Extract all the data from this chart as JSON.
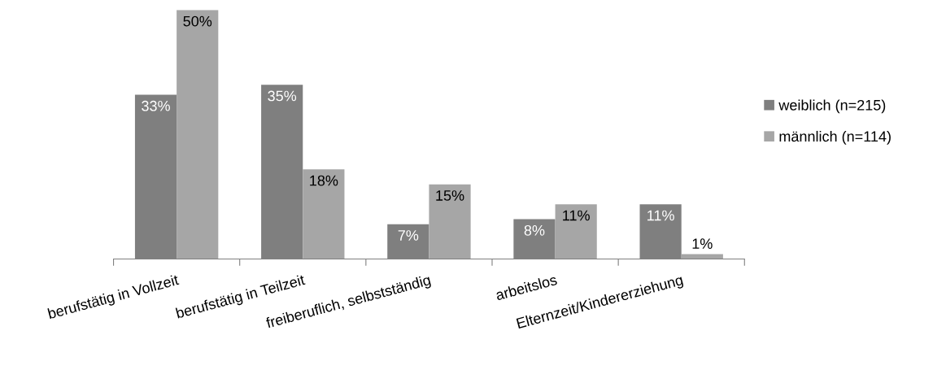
{
  "chart_data": {
    "type": "bar",
    "categories": [
      "berufstätig in Vollzeit",
      "berufstätig in Teilzeit",
      "freiberuflich, selbstständig",
      "arbeitslos",
      "Elternzeit/Kindererziehung"
    ],
    "series": [
      {
        "name": "weiblich (n=215)",
        "color": "#7f7f7f",
        "values": [
          33,
          35,
          7,
          8,
          11
        ],
        "value_labels": [
          "33%",
          "35%",
          "7%",
          "8%",
          "11%"
        ]
      },
      {
        "name": "männlich (n=114)",
        "color": "#a6a6a6",
        "values": [
          50,
          18,
          15,
          11,
          1
        ],
        "value_labels": [
          "50%",
          "18%",
          "15%",
          "11%",
          "1%"
        ]
      }
    ],
    "legend": "right",
    "grid": false
  }
}
